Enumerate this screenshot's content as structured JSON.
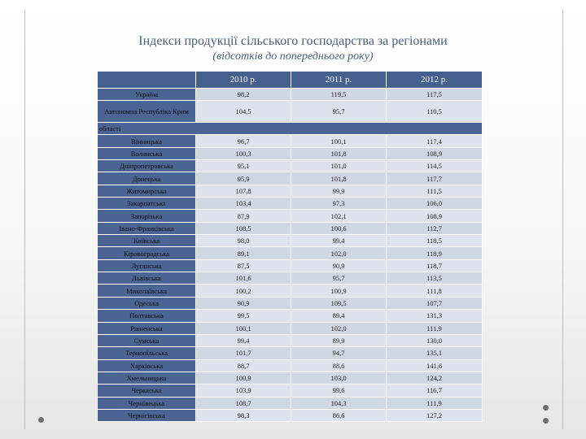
{
  "title": "Індекси продукції сільського господарства за регіонами",
  "subtitle": "(відсотків до попереднього року)",
  "table": {
    "headers": [
      "",
      "2010 р.",
      "2011 р.",
      "2012 р."
    ],
    "top_rows": [
      {
        "name": "Україна",
        "values": [
          "98,2",
          "119,5",
          "117,5"
        ]
      },
      {
        "name": "Автономна Республіка Крим",
        "values": [
          "104,5",
          "95,7",
          "110,5"
        ]
      }
    ],
    "section_label": "області",
    "regions": [
      {
        "name": "Вінницька",
        "values": [
          "96,7",
          "100,1",
          "117,4"
        ]
      },
      {
        "name": "Волинська",
        "values": [
          "100,3",
          "101,8",
          "108,9"
        ]
      },
      {
        "name": "Дніпропетровська",
        "values": [
          "95,1",
          "101,0",
          "114,5"
        ]
      },
      {
        "name": "Донецька",
        "values": [
          "95,9",
          "101,8",
          "117,7"
        ]
      },
      {
        "name": "Житомирська",
        "values": [
          "107,8",
          "99,9",
          "111,5"
        ]
      },
      {
        "name": "Закарпатська",
        "values": [
          "103,4",
          "97,3",
          "106,0"
        ]
      },
      {
        "name": "Запорізька",
        "values": [
          "87,9",
          "102,1",
          "108,9"
        ]
      },
      {
        "name": "Івано-Франківська",
        "values": [
          "108,5",
          "100,6",
          "112,7"
        ]
      },
      {
        "name": "Київська",
        "values": [
          "98,0",
          "99,4",
          "118,5"
        ]
      },
      {
        "name": "Кіровоградська",
        "values": [
          "89,1",
          "102,0",
          "118,9"
        ]
      },
      {
        "name": "Луганська",
        "values": [
          "87,5",
          "90,9",
          "118,7"
        ]
      },
      {
        "name": "Львівська",
        "values": [
          "101,6",
          "95,7",
          "113,5"
        ]
      },
      {
        "name": "Миколаївська",
        "values": [
          "100,2",
          "100,9",
          "111,8"
        ]
      },
      {
        "name": "Одеська",
        "values": [
          "90,9",
          "109,5",
          "107,7"
        ]
      },
      {
        "name": "Полтавська",
        "values": [
          "99,5",
          "89,4",
          "131,3"
        ]
      },
      {
        "name": "Рівненська",
        "values": [
          "100,1",
          "102,0",
          "111,9"
        ]
      },
      {
        "name": "Сумська",
        "values": [
          "99,4",
          "89,9",
          "130,0"
        ]
      },
      {
        "name": "Тернопільська",
        "values": [
          "101,7",
          "94,7",
          "135,1"
        ]
      },
      {
        "name": "Харківська",
        "values": [
          "88,7",
          "88,6",
          "141,6"
        ]
      },
      {
        "name": "Хмельницька",
        "values": [
          "100,9",
          "103,0",
          "124,2"
        ]
      },
      {
        "name": "Черкаська",
        "values": [
          "103,9",
          "99,6",
          "116,7"
        ]
      },
      {
        "name": "Чернівецька",
        "values": [
          "108,7",
          "104,3",
          "111,9"
        ]
      },
      {
        "name": "Чернігівська",
        "values": [
          "98,3",
          "86,6",
          "127,2"
        ]
      }
    ]
  }
}
